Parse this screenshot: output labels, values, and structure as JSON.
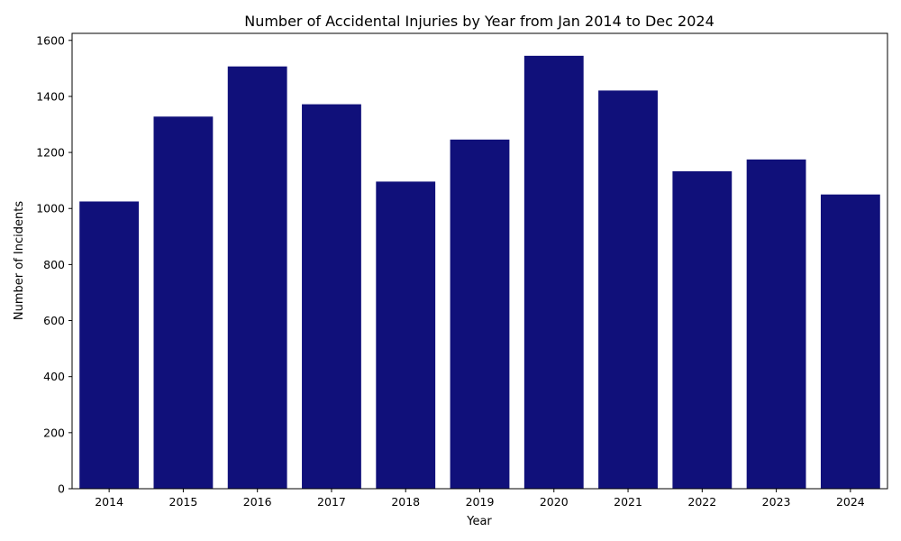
{
  "chart_data": {
    "type": "bar",
    "title": "Number of Accidental Injuries by Year from Jan 2014 to Dec 2024",
    "xlabel": "Year",
    "ylabel": "Number of Incidents",
    "categories": [
      "2014",
      "2015",
      "2016",
      "2017",
      "2018",
      "2019",
      "2020",
      "2021",
      "2022",
      "2023",
      "2024"
    ],
    "values": [
      1025,
      1328,
      1507,
      1372,
      1096,
      1246,
      1545,
      1421,
      1133,
      1175,
      1050
    ],
    "ylim": [
      0,
      1625
    ],
    "yticks": [
      0,
      200,
      400,
      600,
      800,
      1000,
      1200,
      1400,
      1600
    ],
    "bar_color": "#10107a",
    "grid": false,
    "legend": "none"
  }
}
